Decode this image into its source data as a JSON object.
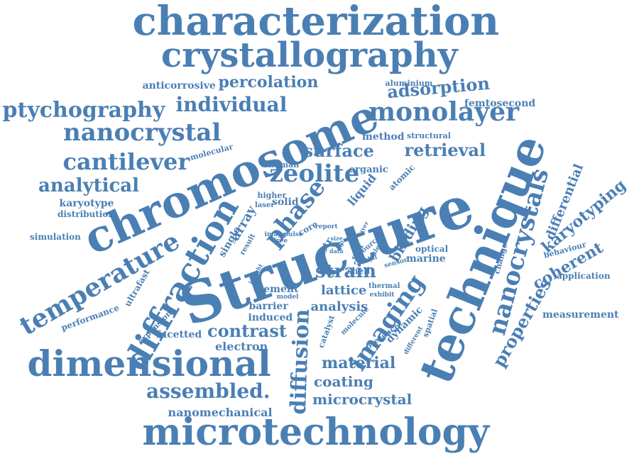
{
  "color": "#4a7fb4",
  "words": [
    "characterization",
    "crystallography",
    "Structure",
    "technique",
    "chromosome",
    "microtechnology",
    "dimensional",
    "diffraction",
    "temperature",
    "nanocrystal",
    "nanocrystals",
    "ptychography",
    "monolayer",
    "cantilever",
    "zeolite",
    "individual",
    "percolation",
    "adsorption",
    "analytical",
    "surface",
    "retrieval",
    "phase",
    "diffusion",
    "imaging",
    "strain",
    "contrast",
    "assembled.",
    "material",
    "coating",
    "microcrystal",
    "properties",
    "karyotyping",
    "differential",
    "coherent",
    "binding",
    "electron",
    "anticorrosive",
    "aluminium",
    "femtosecond",
    "method",
    "structural",
    "molecular",
    "human",
    "organic",
    "atomic",
    "liquid",
    "higher",
    "laser",
    "solid",
    "karyotype",
    "distribution",
    "simulation",
    "array",
    "single",
    "result",
    "image",
    "pulse",
    "free",
    "core",
    "report",
    "size",
    "time",
    "data",
    "layer",
    "str",
    "self",
    "source",
    "scale",
    "shell",
    "crystal",
    "sensor",
    "optical",
    "marine",
    "change",
    "behaviour",
    "application",
    "measurement",
    "lattice",
    "analysis",
    "element",
    "model",
    "barrier",
    "induced",
    "thermal",
    "exhibit",
    "molecule",
    "insight",
    "ultrafast",
    "performance",
    "expansion",
    "facetted",
    "catalyst",
    "presence",
    "dynamic",
    "different",
    "spatial",
    "nanomechanical",
    "ab"
  ]
}
